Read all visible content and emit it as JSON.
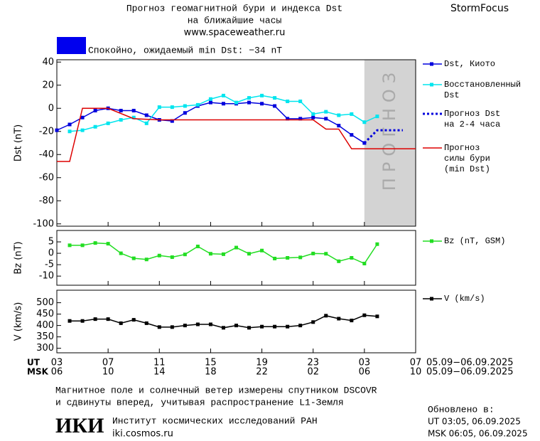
{
  "header": {
    "title": [
      "Прогноз геомагнитной бури и индекса Dst",
      "на ближайшие часы"
    ],
    "site": "www.spaceweather.ru",
    "brand": "StormFocus",
    "status": "Спокойно, ожидаемый min Dst: −34 nT",
    "status_color": "#0000ee"
  },
  "chart_data": [
    {
      "type": "line",
      "ylabel": "Dst (nT)",
      "xlim": [
        0,
        28
      ],
      "ylim": [
        -102,
        42
      ],
      "yticks": [
        -100,
        -80,
        -60,
        -40,
        -20,
        0,
        20,
        40
      ],
      "shade": {
        "xlim": [
          24,
          28
        ],
        "label": "ПРОГНОЗ",
        "color": "#d3d3d3"
      },
      "series": [
        {
          "name": "Dst, Киото",
          "color": "#0000dd",
          "marker": "square",
          "x": [
            0,
            1,
            2,
            3,
            4,
            5,
            6,
            7,
            8,
            9,
            10,
            11,
            12,
            13,
            14,
            15,
            16,
            17,
            18,
            19,
            20,
            21,
            22,
            23,
            24
          ],
          "values": [
            -19,
            -14,
            -8,
            -2,
            0,
            -2,
            -2,
            -6,
            -10,
            -11,
            -4,
            2,
            5,
            4,
            4,
            5,
            4,
            2,
            -9,
            -9,
            -8,
            -9,
            -15,
            -23,
            -30
          ]
        },
        {
          "name": "Восстановленный\nDst",
          "color": "#00e5ee",
          "marker": "square",
          "x": [
            1,
            2,
            3,
            4,
            5,
            6,
            7,
            8,
            9,
            10,
            11,
            12,
            13,
            14,
            15,
            16,
            17,
            18,
            19,
            20,
            21,
            22,
            23,
            24,
            25
          ],
          "values": [
            -20,
            -19,
            -16,
            -13,
            -10,
            -8,
            -13,
            1,
            1,
            2,
            3,
            8,
            11,
            5,
            9,
            11,
            9,
            6,
            6,
            -5,
            -3,
            -6,
            -5,
            -12,
            -7
          ]
        },
        {
          "name": "Прогноз Dst\nна 2-4 часа",
          "color": "#0000dd",
          "dash": true,
          "x": [
            24,
            25,
            27
          ],
          "values": [
            -30,
            -19,
            -19
          ]
        },
        {
          "name": "Прогноз\nсилы бури\n(min Dst)",
          "color": "#dd0000",
          "x": [
            0,
            1,
            2,
            4,
            6,
            8,
            20,
            21,
            22,
            23,
            28
          ],
          "values": [
            -46,
            -46,
            0,
            0,
            -9,
            -10,
            -10,
            -18,
            -18,
            -35,
            -35
          ]
        }
      ]
    },
    {
      "type": "line",
      "ylabel": "Bz (nT)",
      "xlim": [
        0,
        28
      ],
      "ylim": [
        -14,
        10
      ],
      "yticks": [
        -10,
        -5,
        0,
        5
      ],
      "series": [
        {
          "name": "Bz (nT, GSM)",
          "color": "#22dd22",
          "marker": "square",
          "x": [
            1,
            2,
            3,
            4,
            5,
            6,
            7,
            8,
            9,
            10,
            11,
            12,
            13,
            14,
            15,
            16,
            17,
            18,
            19,
            20,
            21,
            22,
            23,
            24,
            25
          ],
          "values": [
            3.5,
            3.5,
            4.5,
            4.2,
            0,
            -2.2,
            -2.7,
            -1,
            -1.7,
            -0.5,
            3,
            -0.2,
            -0.4,
            2.5,
            -0.2,
            1.2,
            -2.3,
            -2,
            -1.8,
            -0.1,
            -0.2,
            -3.5,
            -2,
            -4.5,
            4
          ]
        }
      ]
    },
    {
      "type": "line",
      "ylabel": "V (km/s)",
      "xlim": [
        0,
        28
      ],
      "ylim": [
        280,
        555
      ],
      "yticks": [
        300,
        350,
        400,
        450,
        500
      ],
      "series": [
        {
          "name": "V (km/s)",
          "color": "#000000",
          "marker": "square",
          "x": [
            1,
            2,
            3,
            4,
            5,
            6,
            7,
            8,
            9,
            10,
            11,
            12,
            13,
            14,
            15,
            16,
            17,
            18,
            19,
            20,
            21,
            22,
            23,
            24,
            25
          ],
          "values": [
            420,
            420,
            428,
            428,
            410,
            425,
            410,
            393,
            393,
            400,
            405,
            405,
            390,
            400,
            390,
            395,
            395,
            395,
            400,
            415,
            443,
            430,
            422,
            445,
            440
          ]
        }
      ],
      "xticks": [
        {
          "value": 0,
          "label": "03"
        },
        {
          "value": 4,
          "label": "07"
        },
        {
          "value": 8,
          "label": "11"
        },
        {
          "value": 12,
          "label": "15"
        },
        {
          "value": 16,
          "label": "19"
        },
        {
          "value": 20,
          "label": "23"
        },
        {
          "value": 24,
          "label": "03"
        },
        {
          "value": 28,
          "label": "07"
        }
      ],
      "x2ticks": [
        {
          "value": 0,
          "label": "06"
        },
        {
          "value": 4,
          "label": "10"
        },
        {
          "value": 8,
          "label": "14"
        },
        {
          "value": 12,
          "label": "18"
        },
        {
          "value": 16,
          "label": "22"
        },
        {
          "value": 20,
          "label": "02"
        },
        {
          "value": 24,
          "label": "06"
        },
        {
          "value": 28,
          "label": "10"
        }
      ],
      "xlabel": "UT",
      "x2label": "MSK",
      "xrange": "05.09−06.09.2025",
      "x2range": "05.09−06.09.2025"
    }
  ],
  "footer": {
    "note": [
      "Магнитное поле и солнечный ветер измерены спутником DSCOVR",
      "и сдвинуты вперед, учитывая распространение L1-Земля"
    ],
    "logo": "ИКИ",
    "institute": "Институт космических исследований РАН",
    "url": "iki.cosmos.ru",
    "updated": "Обновлено в:",
    "ut": "UT  03:05, 06.09.2025",
    "msk": "MSK 06:05, 06.09.2025"
  }
}
